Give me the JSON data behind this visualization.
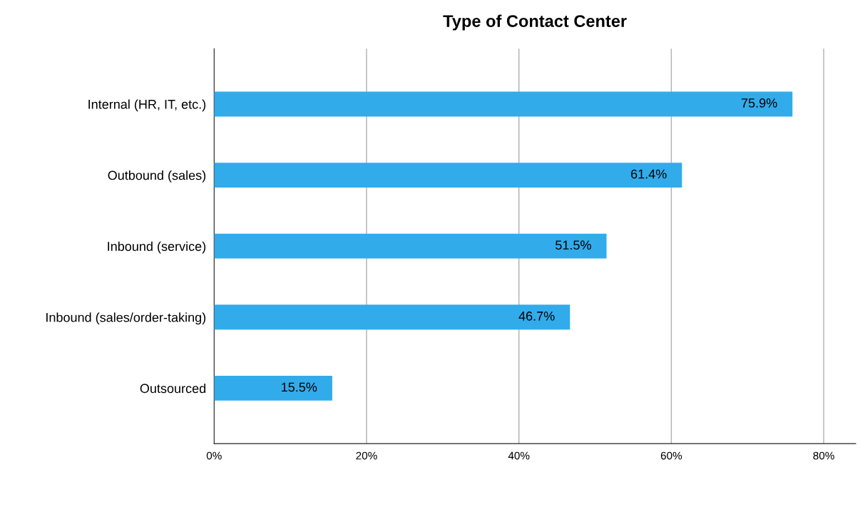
{
  "chart_data": {
    "type": "bar",
    "orientation": "horizontal",
    "title": "Type of Contact Center",
    "categories": [
      "Internal (HR, IT, etc.)",
      "Outbound (sales)",
      "Inbound (service)",
      "Inbound (sales/order-taking)",
      "Outsourced"
    ],
    "values": [
      75.9,
      61.4,
      51.5,
      46.7,
      15.5
    ],
    "value_labels": [
      "75.9%",
      "61.4%",
      "51.5%",
      "46.7%",
      "15.5%"
    ],
    "color": "#32abeb",
    "xlim": [
      0,
      84.2
    ],
    "xticks": [
      {
        "value": 0,
        "label": "0%"
      },
      {
        "value": 20,
        "label": "20%"
      },
      {
        "value": 40,
        "label": "40%"
      },
      {
        "value": 60,
        "label": "60%"
      },
      {
        "value": 80,
        "label": "80%"
      }
    ],
    "grid": "x",
    "legend": false
  }
}
